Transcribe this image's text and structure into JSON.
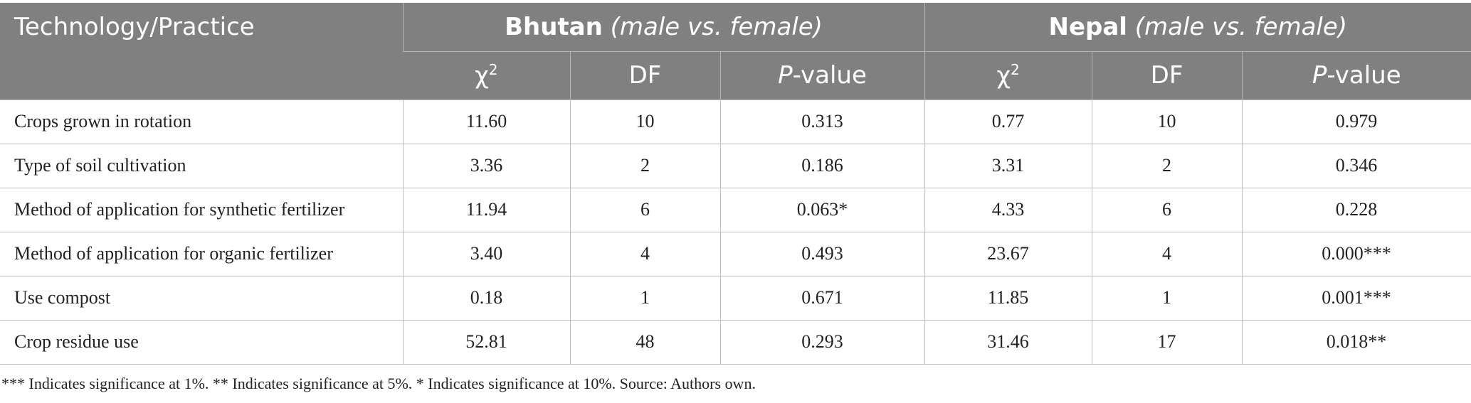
{
  "header": {
    "tech": "Technology/Practice",
    "bhutan": "Bhutan",
    "bhutan_note": "(male vs. female)",
    "nepal": "Nepal",
    "nepal_note": "(male vs. female)",
    "chi": "χ",
    "chi_sup": "2",
    "df": "DF",
    "p_italic": "P",
    "p_rest": "-value"
  },
  "rows": [
    {
      "label": "Crops grown in rotation",
      "b_chi": "11.60",
      "b_df": "10",
      "b_p": "0.313",
      "n_chi": "0.77",
      "n_df": "10",
      "n_p": "0.979"
    },
    {
      "label": "Type of soil cultivation",
      "b_chi": "3.36",
      "b_df": "2",
      "b_p": "0.186",
      "n_chi": "3.31",
      "n_df": "2",
      "n_p": "0.346"
    },
    {
      "label": "Method of application for synthetic fertilizer",
      "b_chi": "11.94",
      "b_df": "6",
      "b_p": "0.063*",
      "n_chi": "4.33",
      "n_df": "6",
      "n_p": "0.228"
    },
    {
      "label": "Method of application for organic fertilizer",
      "b_chi": "3.40",
      "b_df": "4",
      "b_p": "0.493",
      "n_chi": "23.67",
      "n_df": "4",
      "n_p": "0.000***"
    },
    {
      "label": "Use compost",
      "b_chi": "0.18",
      "b_df": "1",
      "b_p": "0.671",
      "n_chi": "11.85",
      "n_df": "1",
      "n_p": "0.001***"
    },
    {
      "label": "Crop residue use",
      "b_chi": "52.81",
      "b_df": "48",
      "b_p": "0.293",
      "n_chi": "31.46",
      "n_df": "17",
      "n_p": "0.018**"
    }
  ],
  "footnote": "*** Indicates significance at 1%. ** Indicates significance at 5%. * Indicates significance at 10%. Source: Authors own.",
  "colors": {
    "header_bg": "#808080",
    "header_text": "#ffffff",
    "grid": "#bdbdbd"
  }
}
